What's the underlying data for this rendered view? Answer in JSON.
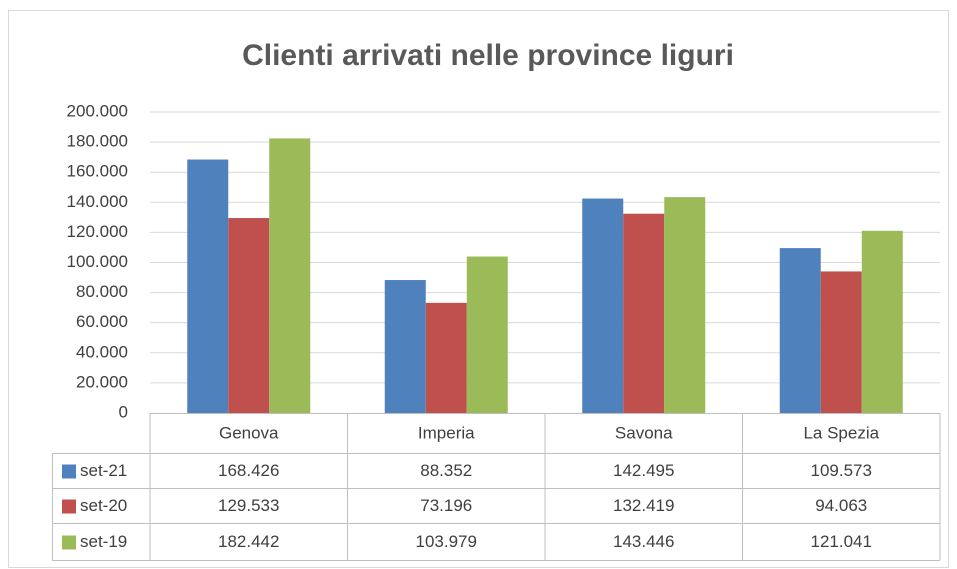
{
  "chart_data": {
    "type": "bar",
    "title": "Clienti arrivati nelle province liguri",
    "categories": [
      "Genova",
      "Imperia",
      "Savona",
      "La Spezia"
    ],
    "series": [
      {
        "name": "set-21",
        "color": "#4f81bd",
        "values": [
          168426,
          88352,
          142495,
          109573
        ],
        "value_labels": [
          "168.426",
          "88.352",
          "142.495",
          "109.573"
        ]
      },
      {
        "name": "set-20",
        "color": "#c0504d",
        "values": [
          129533,
          73196,
          132419,
          94063
        ],
        "value_labels": [
          "129.533",
          "73.196",
          "132.419",
          "94.063"
        ]
      },
      {
        "name": "set-19",
        "color": "#9bbb59",
        "values": [
          182442,
          103979,
          143446,
          121041
        ],
        "value_labels": [
          "182.442",
          "103.979",
          "143.446",
          "121.041"
        ]
      }
    ],
    "ylim": [
      0,
      200000
    ],
    "yticks": [
      0,
      {
        "value": 20000,
        "label": "20.000"
      },
      {
        "value": 40000,
        "label": "40.000"
      },
      {
        "value": 60000,
        "label": "60.000"
      },
      {
        "value": 80000,
        "label": "80.000"
      },
      {
        "value": 100000,
        "label": "100.000"
      },
      {
        "value": 120000,
        "label": "120.000"
      },
      {
        "value": 140000,
        "label": "140.000"
      },
      {
        "value": 160000,
        "label": "160.000"
      },
      {
        "value": 180000,
        "label": "180.000"
      },
      {
        "value": 200000,
        "label": "200.000"
      }
    ],
    "grid": true
  }
}
